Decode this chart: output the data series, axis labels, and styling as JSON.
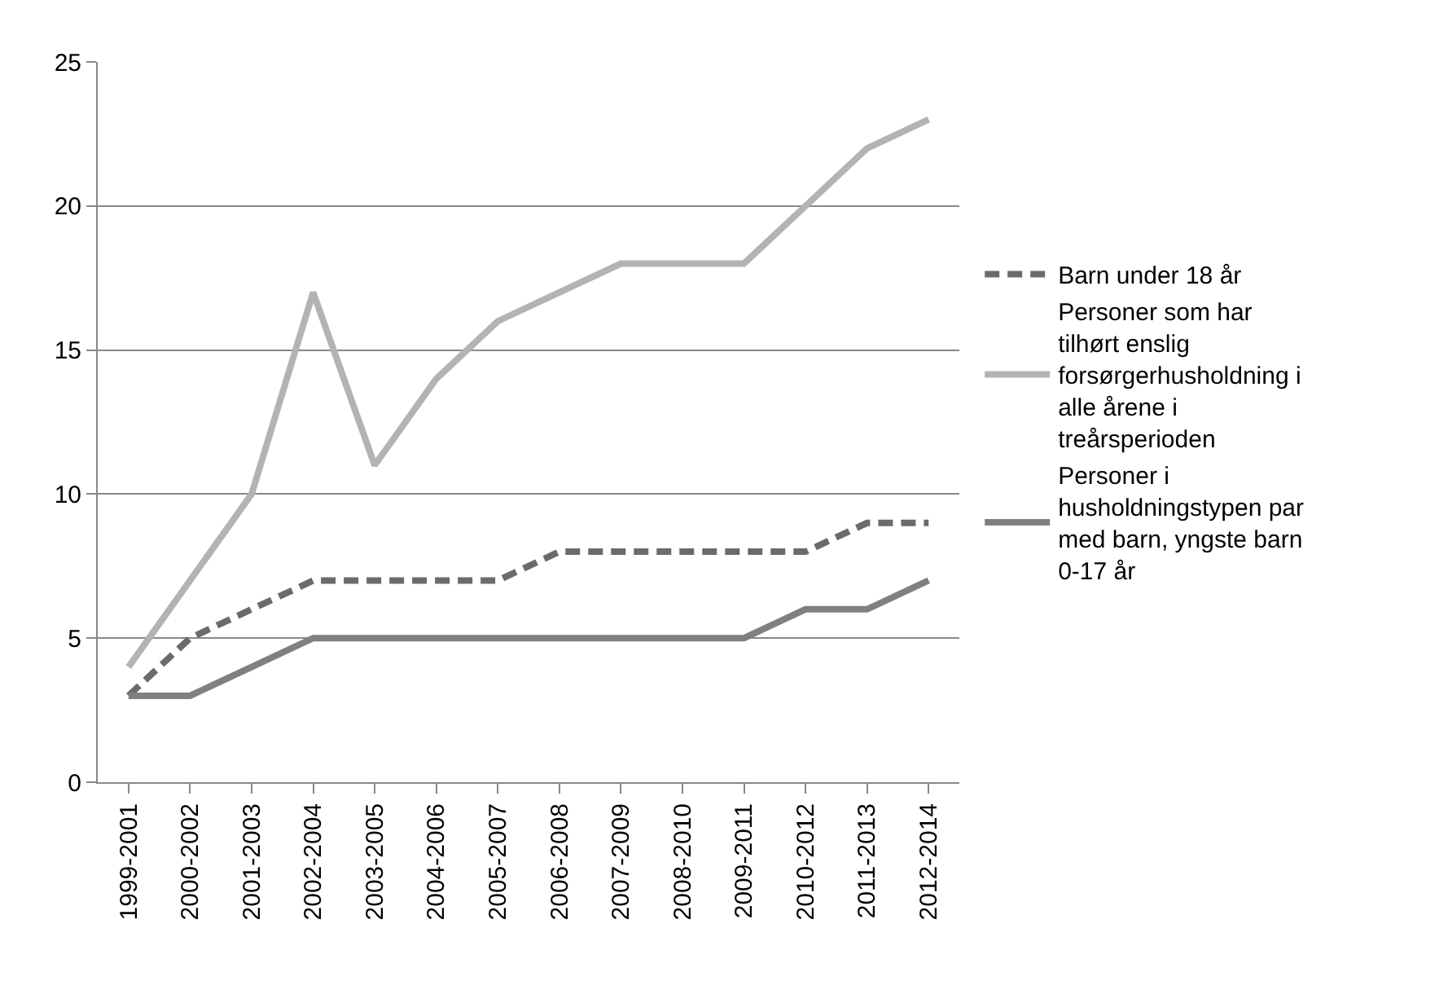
{
  "chart_data": {
    "type": "line",
    "categories": [
      "1999-2001",
      "2000-2002",
      "2001-2003",
      "2002-2004",
      "2003-2005",
      "2004-2006",
      "2005-2007",
      "2006-2008",
      "2007-2009",
      "2008-2010",
      "2009-2011",
      "2010-2012",
      "2011-2013",
      "2012-2014"
    ],
    "series": [
      {
        "name": "Barn under 18 år",
        "color": "#6b6b6b",
        "line_style": "dashed",
        "values": [
          3,
          5,
          6,
          7,
          7,
          7,
          7,
          8,
          8,
          8,
          8,
          8,
          9,
          9
        ]
      },
      {
        "name": "Personer som har tilhørt enslig forsørgerhusholdning i alle årene i treårsperioden",
        "color": "#b3b3b3",
        "line_style": "solid",
        "values": [
          4,
          7,
          10,
          17,
          11,
          14,
          16,
          17,
          18,
          18,
          18,
          20,
          22,
          23
        ]
      },
      {
        "name": "Personer i husholdningstypen par med barn, yngste barn 0-17 år",
        "color": "#808080",
        "line_style": "solid",
        "values": [
          3,
          3,
          4,
          5,
          5,
          5,
          5,
          5,
          5,
          5,
          5,
          6,
          6,
          7
        ]
      }
    ],
    "ylim": [
      0,
      25
    ],
    "yticks": [
      0,
      5,
      10,
      15,
      20,
      25
    ],
    "grid": "y",
    "legend": "right",
    "marker": "none"
  }
}
